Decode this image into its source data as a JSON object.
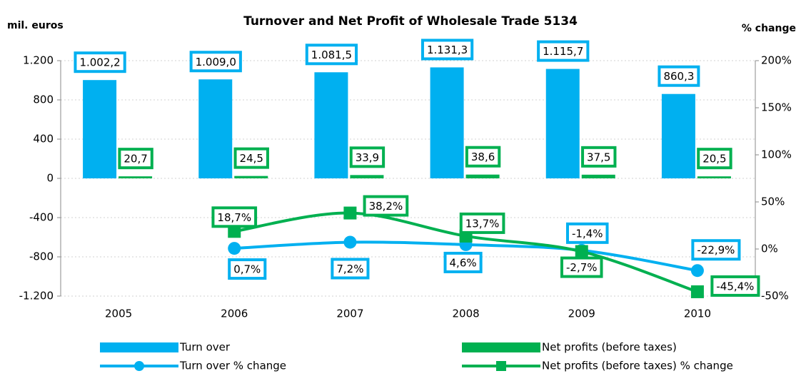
{
  "chart_data": {
    "type": "combo",
    "title": "Turnover and Net Profit of Wholesale Trade 5134",
    "y_label": "mil. euros",
    "y2_label": "% change",
    "categories": [
      "2005",
      "2006",
      "2007",
      "2008",
      "2009",
      "2010"
    ],
    "ylim": [
      -1200,
      1200
    ],
    "yticks": [
      {
        "value": -1200,
        "label": "-1.200"
      },
      -800,
      -400,
      0,
      400,
      800,
      {
        "value": 1200,
        "label": "1.200"
      }
    ],
    "y2lim": [
      -50,
      200
    ],
    "y2ticks": [
      {
        "value": -50,
        "label": "-50%"
      },
      {
        "value": 0,
        "label": "0%"
      },
      {
        "value": 50,
        "label": "50%"
      },
      {
        "value": 100,
        "label": "100%"
      },
      {
        "value": 150,
        "label": "150%"
      },
      {
        "value": 200,
        "label": "200%"
      }
    ],
    "grid": true,
    "series": [
      {
        "name": "Turn over",
        "type": "bar",
        "color": "#00b0f0",
        "values": [
          1002.2,
          1009.0,
          1081.5,
          1131.3,
          1115.7,
          860.3
        ],
        "value_labels": [
          "1.002,2",
          "1.009,0",
          "1.081,5",
          "1.131,3",
          "1.115,7",
          "860,3"
        ]
      },
      {
        "name": "Net profits (before taxes)",
        "type": "bar",
        "color": "#00b050",
        "values": [
          20.7,
          24.5,
          33.9,
          38.6,
          37.5,
          20.5
        ],
        "value_labels": [
          "20,7",
          "24,5",
          "33,9",
          "38,6",
          "37,5",
          "20,5"
        ]
      },
      {
        "name": "Turn over % change",
        "type": "line",
        "axis": "y2",
        "color": "#00b0f0",
        "marker": "circle",
        "values": [
          null,
          0.7,
          7.2,
          4.6,
          -1.4,
          -22.9
        ],
        "value_labels": [
          null,
          "0,7%",
          "7,2%",
          "4,6%",
          "-1,4%",
          "-22,9%"
        ]
      },
      {
        "name": "Net profits (before taxes) % change",
        "type": "line",
        "axis": "y2",
        "color": "#00b050",
        "marker": "square",
        "values": [
          null,
          18.7,
          38.2,
          13.7,
          -2.7,
          -45.4
        ],
        "value_labels": [
          null,
          "18,7%",
          "38,2%",
          "13,7%",
          "-2,7%",
          "-45,4%"
        ]
      }
    ]
  }
}
